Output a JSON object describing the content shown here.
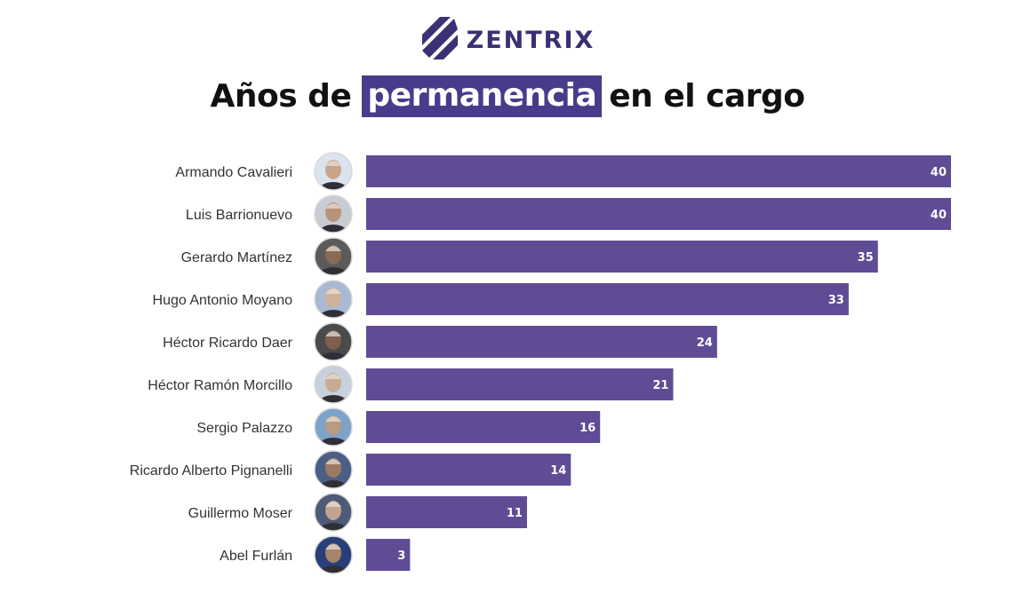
{
  "brand": {
    "name": "ZENTRIX",
    "color": "#3d2f73"
  },
  "title": {
    "before": "Años de",
    "highlight": "permanencia",
    "after": "en el cargo",
    "highlight_color": "#4a3a8c"
  },
  "colors": {
    "bar": "#5f4c95",
    "label": "#333333",
    "value_text": "#ffffff"
  },
  "chart_data": {
    "type": "bar",
    "orientation": "horizontal",
    "title": "Años de permanencia en el cargo",
    "categories": [
      "Armando Cavalieri",
      "Luis Barrionuevo",
      "Gerardo Martínez",
      "Hugo Antonio Moyano",
      "Héctor Ricardo Daer",
      "Héctor Ramón Morcillo",
      "Sergio Palazzo",
      "Ricardo Alberto Pignanelli",
      "Guillermo Moser",
      "Abel Furlán"
    ],
    "values": [
      40,
      40,
      35,
      33,
      24,
      21,
      16,
      14,
      11,
      3
    ],
    "xlim": [
      0,
      40
    ],
    "grid": false,
    "legend": "none",
    "data_labels": "inside-end",
    "avatars": "portrait-icon"
  }
}
